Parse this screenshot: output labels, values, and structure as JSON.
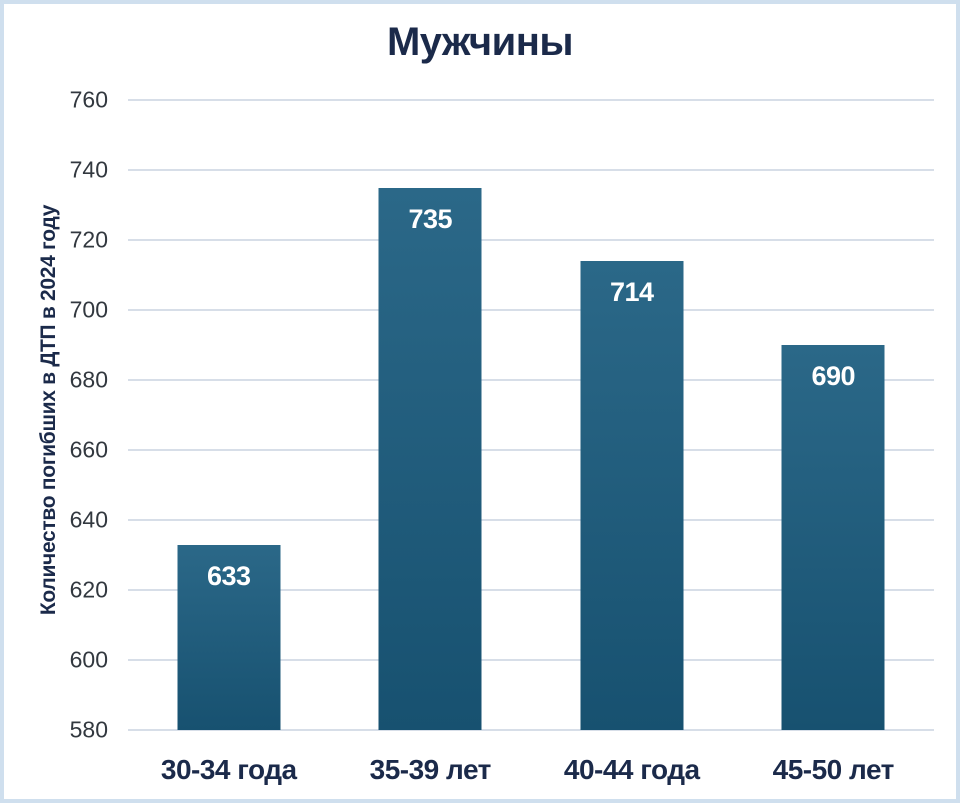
{
  "chart_data": {
    "type": "bar",
    "title": "Мужчины",
    "ylabel": "Количество погибших в ДТП в 2024 году",
    "xlabel": "",
    "categories": [
      "30-34 года",
      "35-39 лет",
      "40-44 года",
      "45-50 лет"
    ],
    "values": [
      633,
      735,
      714,
      690
    ],
    "yticks": [
      580,
      600,
      620,
      640,
      660,
      680,
      700,
      720,
      740,
      760
    ],
    "ylim": [
      580,
      760
    ],
    "grid": "horizontal",
    "legend": "none",
    "colors": {
      "bar_top": "#2b6888",
      "bar_bottom": "#175170",
      "title": "#1b2a4a",
      "axis_labels": "#1b2a4a",
      "tick_labels": "#32383f",
      "gridlines": "#d7dee8",
      "frame_border": "#cfdfee",
      "value_labels": "#ffffff",
      "background": "#ffffff"
    }
  }
}
